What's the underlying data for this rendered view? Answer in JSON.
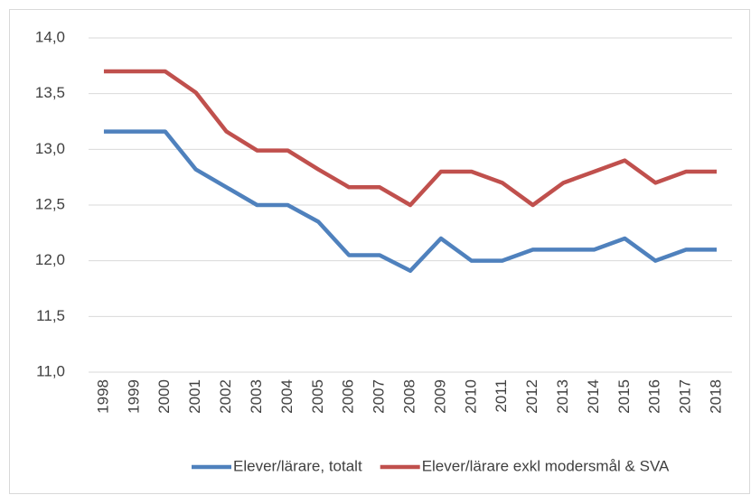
{
  "chart_data": {
    "type": "line",
    "categories": [
      "1998",
      "1999",
      "2000",
      "2001",
      "2002",
      "2003",
      "2004",
      "2005",
      "2006",
      "2007",
      "2008",
      "2009",
      "2010",
      "2011",
      "2012",
      "2013",
      "2014",
      "2015",
      "2016",
      "2017",
      "2018"
    ],
    "series": [
      {
        "name": "Elever/lärare, totalt",
        "color": "#4f81bd",
        "values": [
          13.16,
          13.16,
          13.16,
          12.82,
          12.66,
          12.5,
          12.5,
          12.35,
          12.05,
          12.05,
          11.91,
          12.2,
          12.0,
          12.0,
          12.1,
          12.1,
          12.1,
          12.2,
          12.0,
          12.1,
          12.1
        ]
      },
      {
        "name": "Elever/lärare exkl modersmål & SVA",
        "color": "#c0504d",
        "values": [
          13.7,
          13.7,
          13.7,
          13.51,
          13.16,
          12.99,
          12.99,
          12.82,
          12.66,
          12.66,
          12.5,
          12.8,
          12.8,
          12.7,
          12.5,
          12.7,
          12.8,
          12.9,
          12.7,
          12.8,
          12.8
        ]
      }
    ],
    "ylim": [
      11,
      14
    ],
    "yticks": [
      {
        "value": 11,
        "label": "11,0"
      },
      {
        "value": 11.5,
        "label": "11,5"
      },
      {
        "value": 12,
        "label": "12,0"
      },
      {
        "value": 12.5,
        "label": "12,5"
      },
      {
        "value": 13,
        "label": "13,0"
      },
      {
        "value": 13.5,
        "label": "13,5"
      },
      {
        "value": 14,
        "label": "14,0"
      }
    ],
    "grid": true,
    "legend": "bottom"
  }
}
